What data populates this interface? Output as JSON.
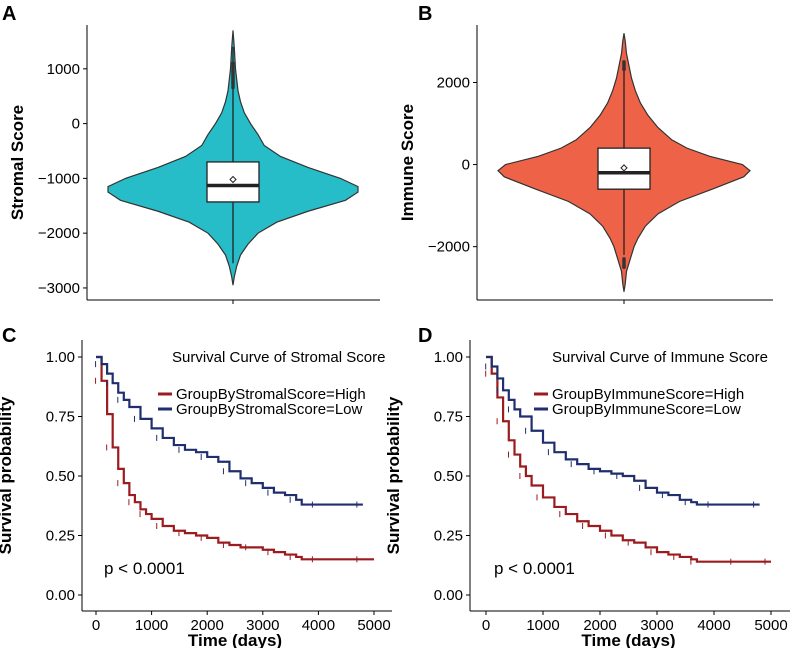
{
  "panels": {
    "A": {
      "letter": "A"
    },
    "B": {
      "letter": "B"
    },
    "C": {
      "letter": "C"
    },
    "D": {
      "letter": "D"
    }
  },
  "colors": {
    "stromal_violin": "#26BDC8",
    "immune_violin": "#EE6347",
    "high_curve": "#9B1B1F",
    "low_curve": "#1F2E6E",
    "axis": "#000000"
  },
  "chart_data": [
    {
      "id": "A",
      "type": "violin",
      "ylabel": "Stromal Score",
      "ylim": [
        -3000,
        1700
      ],
      "yticks": [
        1000,
        0,
        -1000,
        -2000,
        -3000
      ],
      "ytick_labels": [
        "1000",
        "0",
        "−1000",
        "−2000",
        "−3000"
      ],
      "box": {
        "q1": -1430,
        "median": -1130,
        "q3": -700,
        "mean": -1020,
        "whisker_low": -2550,
        "whisker_high": 1400
      },
      "range": [
        -2950,
        1700
      ],
      "density": [
        [
          -2950,
          0.0
        ],
        [
          -2800,
          0.01
        ],
        [
          -2600,
          0.03
        ],
        [
          -2400,
          0.06
        ],
        [
          -2200,
          0.12
        ],
        [
          -2000,
          0.2
        ],
        [
          -1800,
          0.35
        ],
        [
          -1600,
          0.6
        ],
        [
          -1400,
          0.9
        ],
        [
          -1250,
          1.0
        ],
        [
          -1150,
          1.0
        ],
        [
          -1000,
          0.86
        ],
        [
          -800,
          0.6
        ],
        [
          -600,
          0.38
        ],
        [
          -400,
          0.25
        ],
        [
          -200,
          0.2
        ],
        [
          0,
          0.14
        ],
        [
          200,
          0.09
        ],
        [
          400,
          0.06
        ],
        [
          600,
          0.04
        ],
        [
          800,
          0.03
        ],
        [
          1000,
          0.02
        ],
        [
          1200,
          0.015
        ],
        [
          1400,
          0.01
        ],
        [
          1700,
          0.0
        ]
      ],
      "outliers": [
        1100,
        1060,
        1020,
        980,
        950,
        920,
        890,
        860,
        830,
        800,
        770,
        740,
        700,
        660
      ]
    },
    {
      "id": "B",
      "type": "violin",
      "ylabel": "Immune Score",
      "ylim": [
        -3300,
        3200
      ],
      "yticks": [
        2000,
        0,
        -2000
      ],
      "ytick_labels": [
        "2000",
        "0",
        "−2000"
      ],
      "box": {
        "q1": -600,
        "median": -200,
        "q3": 400,
        "mean": -80,
        "whisker_low": -2200,
        "whisker_high": 2300
      },
      "range": [
        -3100,
        3200
      ],
      "density": [
        [
          -3100,
          0.0
        ],
        [
          -2900,
          0.01
        ],
        [
          -2600,
          0.02
        ],
        [
          -2300,
          0.05
        ],
        [
          -2000,
          0.08
        ],
        [
          -1800,
          0.11
        ],
        [
          -1500,
          0.17
        ],
        [
          -1200,
          0.27
        ],
        [
          -900,
          0.44
        ],
        [
          -600,
          0.7
        ],
        [
          -300,
          0.95
        ],
        [
          -150,
          1.0
        ],
        [
          0,
          0.94
        ],
        [
          200,
          0.68
        ],
        [
          400,
          0.5
        ],
        [
          600,
          0.38
        ],
        [
          900,
          0.27
        ],
        [
          1200,
          0.19
        ],
        [
          1500,
          0.13
        ],
        [
          1800,
          0.09
        ],
        [
          2100,
          0.06
        ],
        [
          2400,
          0.04
        ],
        [
          2700,
          0.02
        ],
        [
          3000,
          0.01
        ],
        [
          3200,
          0.0
        ]
      ],
      "outliers": [
        2500,
        2450,
        2400,
        2350,
        2320,
        -2300,
        -2350,
        -2400,
        -2450,
        -2500
      ]
    },
    {
      "id": "C",
      "type": "line",
      "title": "Survival Curve of Stromal Score",
      "xlabel": "Time (days)",
      "ylabel": "Survival probability",
      "xlim": [
        0,
        5000
      ],
      "ylim": [
        0,
        1
      ],
      "xticks": [
        0,
        1000,
        2000,
        3000,
        4000,
        5000
      ],
      "yticks": [
        0,
        0.25,
        0.5,
        0.75,
        1.0
      ],
      "ytick_labels": [
        "0.00",
        "0.25",
        "0.50",
        "0.75",
        "1.00"
      ],
      "annotation": "p < 0.0001",
      "series": [
        {
          "name": "GroupByStromalScore=High",
          "x": [
            0,
            100,
            200,
            300,
            400,
            500,
            600,
            700,
            800,
            900,
            1000,
            1200,
            1400,
            1600,
            1800,
            2000,
            2200,
            2400,
            2600,
            2800,
            3000,
            3200,
            3400,
            3600,
            3700,
            4000,
            4400,
            4800,
            5000
          ],
          "y": [
            1.0,
            0.9,
            0.76,
            0.62,
            0.53,
            0.47,
            0.42,
            0.39,
            0.36,
            0.34,
            0.32,
            0.29,
            0.27,
            0.26,
            0.25,
            0.24,
            0.22,
            0.21,
            0.2,
            0.2,
            0.19,
            0.18,
            0.17,
            0.16,
            0.15,
            0.15,
            0.15,
            0.15,
            0.15
          ]
        },
        {
          "name": "GroupByStromalScore=Low",
          "x": [
            0,
            100,
            200,
            300,
            400,
            500,
            600,
            800,
            1000,
            1200,
            1400,
            1600,
            1800,
            2000,
            2200,
            2400,
            2600,
            2800,
            3000,
            3200,
            3400,
            3600,
            3700,
            4000,
            4400,
            4800
          ],
          "y": [
            1.0,
            0.97,
            0.93,
            0.89,
            0.85,
            0.82,
            0.79,
            0.74,
            0.7,
            0.66,
            0.63,
            0.61,
            0.6,
            0.58,
            0.56,
            0.52,
            0.49,
            0.47,
            0.45,
            0.43,
            0.42,
            0.4,
            0.38,
            0.38,
            0.38,
            0.38
          ]
        }
      ]
    },
    {
      "id": "D",
      "type": "line",
      "title": "Survival Curve of Immune Score",
      "xlabel": "Time (days)",
      "ylabel": "Survival probability",
      "xlim": [
        0,
        5000
      ],
      "ylim": [
        0,
        1
      ],
      "xticks": [
        0,
        1000,
        2000,
        3000,
        4000,
        5000
      ],
      "yticks": [
        0,
        0.25,
        0.5,
        0.75,
        1.0
      ],
      "ytick_labels": [
        "0.00",
        "0.25",
        "0.50",
        "0.75",
        "1.00"
      ],
      "annotation": "p < 0.0001",
      "series": [
        {
          "name": "GroupByImmuneScore=High",
          "x": [
            0,
            100,
            200,
            300,
            400,
            500,
            600,
            700,
            800,
            1000,
            1200,
            1400,
            1600,
            1800,
            2000,
            2200,
            2400,
            2600,
            2800,
            3000,
            3200,
            3400,
            3600,
            3700,
            4000,
            4400,
            4800,
            5000
          ],
          "y": [
            1.0,
            0.93,
            0.83,
            0.73,
            0.65,
            0.59,
            0.54,
            0.5,
            0.46,
            0.41,
            0.37,
            0.34,
            0.31,
            0.29,
            0.27,
            0.25,
            0.23,
            0.22,
            0.2,
            0.18,
            0.17,
            0.16,
            0.15,
            0.14,
            0.14,
            0.14,
            0.14,
            0.14
          ]
        },
        {
          "name": "GroupByImmuneScore=Low",
          "x": [
            0,
            100,
            200,
            300,
            400,
            500,
            600,
            800,
            1000,
            1200,
            1400,
            1600,
            1800,
            2000,
            2200,
            2400,
            2600,
            2800,
            3000,
            3200,
            3400,
            3600,
            3700,
            4000,
            4400,
            4800
          ],
          "y": [
            1.0,
            0.96,
            0.91,
            0.86,
            0.82,
            0.78,
            0.75,
            0.69,
            0.64,
            0.6,
            0.57,
            0.55,
            0.53,
            0.52,
            0.51,
            0.5,
            0.48,
            0.45,
            0.43,
            0.42,
            0.4,
            0.39,
            0.38,
            0.38,
            0.38,
            0.38
          ]
        }
      ]
    }
  ]
}
